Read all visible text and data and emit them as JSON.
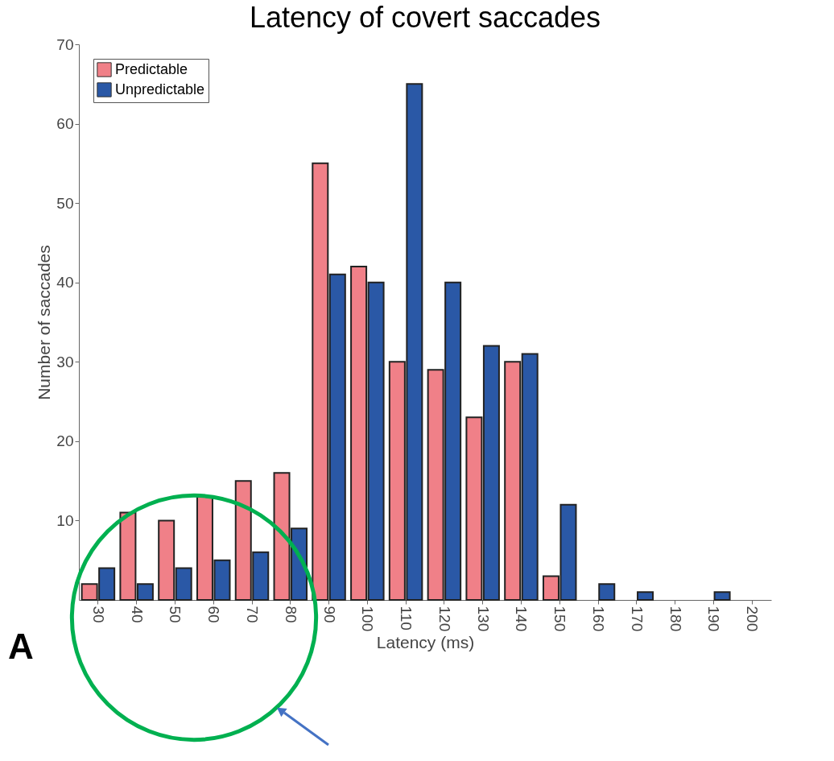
{
  "chart_data": {
    "type": "bar",
    "title": "Latency of covert saccades",
    "xlabel": "Latency (ms)",
    "ylabel": "Number of saccades",
    "categories": [
      "30",
      "40",
      "50",
      "60",
      "70",
      "80",
      "90",
      "100",
      "110",
      "120",
      "130",
      "140",
      "150",
      "160",
      "170",
      "180",
      "190",
      "200"
    ],
    "series": [
      {
        "name": "Predictable",
        "color": "#f08088",
        "values": [
          2,
          11,
          10,
          13,
          15,
          16,
          55,
          42,
          30,
          29,
          23,
          30,
          3,
          null,
          null,
          null,
          null,
          null
        ]
      },
      {
        "name": "Unpredictable",
        "color": "#2a58a6",
        "values": [
          4,
          2,
          4,
          5,
          6,
          9,
          41,
          40,
          65,
          40,
          32,
          31,
          12,
          2,
          1,
          null,
          1,
          null
        ]
      }
    ],
    "ylim": [
      0,
      70
    ],
    "yticks": [
      10,
      20,
      30,
      40,
      50,
      60,
      70
    ],
    "grid": false,
    "legend": "top left",
    "annotations": [
      "A"
    ]
  }
}
